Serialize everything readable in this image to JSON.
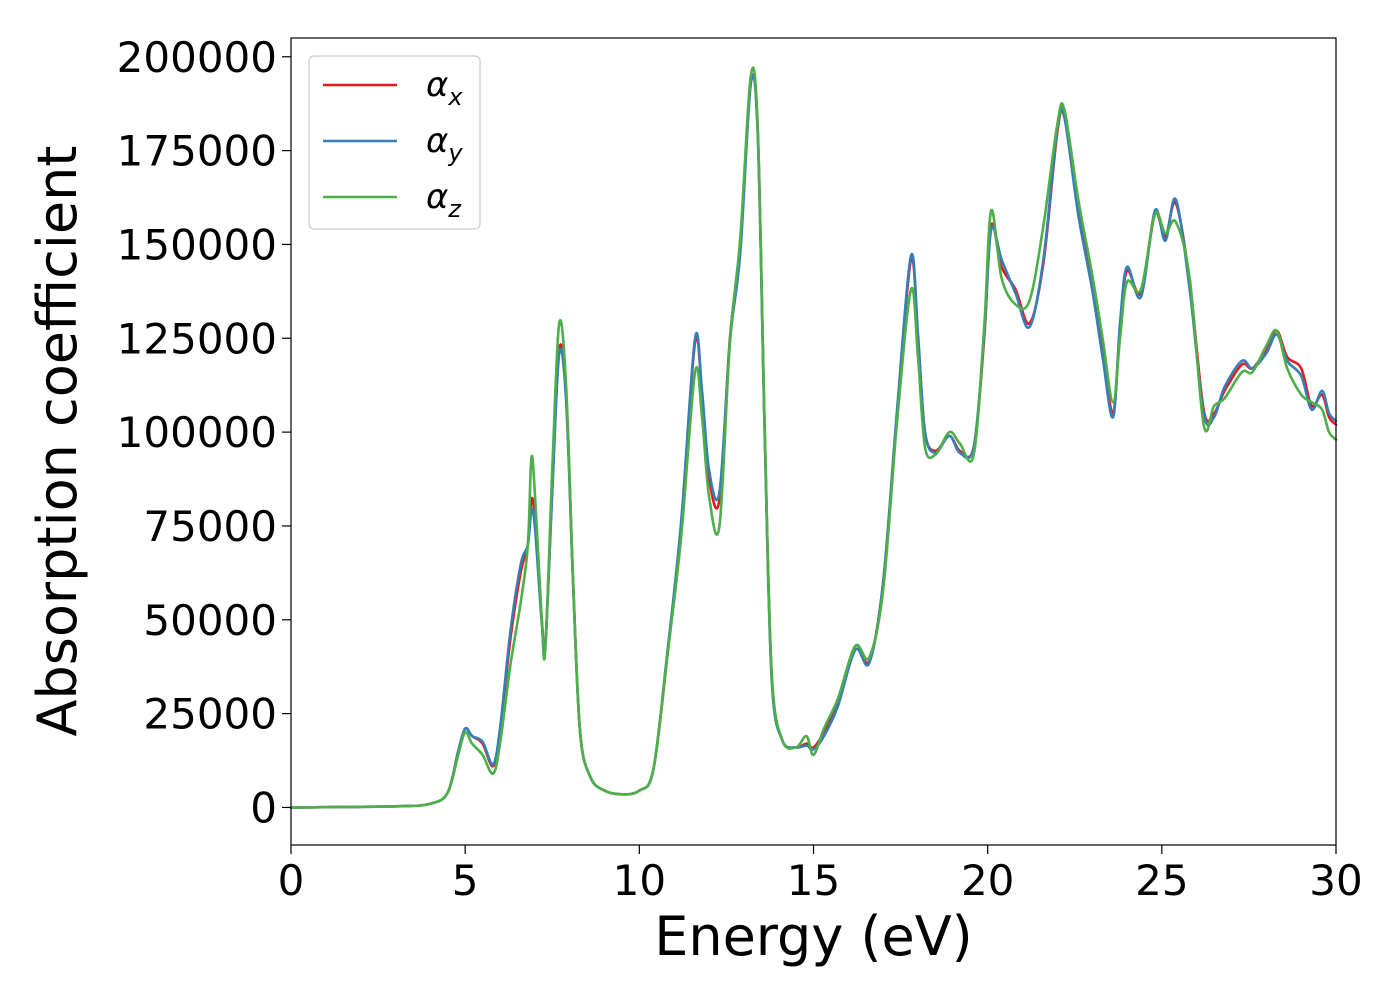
{
  "chart_data": {
    "type": "line",
    "title": "",
    "xlabel": "Energy (eV)",
    "ylabel": "Absorption coefficient",
    "xlim": [
      0,
      30
    ],
    "ylim": [
      -10000,
      205000
    ],
    "xticks": [
      0,
      5,
      10,
      15,
      20,
      25,
      30
    ],
    "xtick_labels": [
      "0",
      "5",
      "10",
      "15",
      "20",
      "25",
      "30"
    ],
    "yticks": [
      0,
      25000,
      50000,
      75000,
      100000,
      125000,
      150000,
      175000,
      200000
    ],
    "ytick_labels": [
      "0",
      "25000",
      "50000",
      "75000",
      "100000",
      "125000",
      "150000",
      "175000",
      "200000"
    ],
    "grid": false,
    "legend_position": "top-left",
    "series": [
      {
        "name": "α",
        "subscript": "x",
        "color": "#e41a1c",
        "points": [
          [
            0,
            0
          ],
          [
            3,
            300
          ],
          [
            4,
            1000
          ],
          [
            4.5,
            4000
          ],
          [
            4.8,
            15000
          ],
          [
            5.0,
            21000
          ],
          [
            5.2,
            19000
          ],
          [
            5.5,
            17000
          ],
          [
            5.8,
            11000
          ],
          [
            6.0,
            20000
          ],
          [
            6.3,
            45000
          ],
          [
            6.6,
            63000
          ],
          [
            6.8,
            70000
          ],
          [
            6.9,
            82000
          ],
          [
            7.0,
            77000
          ],
          [
            7.2,
            50000
          ],
          [
            7.3,
            43000
          ],
          [
            7.5,
            85000
          ],
          [
            7.7,
            122000
          ],
          [
            7.9,
            110000
          ],
          [
            8.1,
            60000
          ],
          [
            8.3,
            20000
          ],
          [
            8.6,
            8000
          ],
          [
            9.0,
            4500
          ],
          [
            9.5,
            3500
          ],
          [
            10.0,
            4500
          ],
          [
            10.4,
            10000
          ],
          [
            10.8,
            40000
          ],
          [
            11.2,
            75000
          ],
          [
            11.6,
            124000
          ],
          [
            11.8,
            110000
          ],
          [
            12.0,
            88000
          ],
          [
            12.3,
            82000
          ],
          [
            12.6,
            125000
          ],
          [
            12.9,
            150000
          ],
          [
            13.2,
            193000
          ],
          [
            13.4,
            180000
          ],
          [
            13.6,
            100000
          ],
          [
            13.8,
            35000
          ],
          [
            14.1,
            18000
          ],
          [
            14.5,
            16000
          ],
          [
            14.8,
            17000
          ],
          [
            15.0,
            16000
          ],
          [
            15.3,
            20000
          ],
          [
            15.7,
            28000
          ],
          [
            16.2,
            43000
          ],
          [
            16.6,
            39000
          ],
          [
            17.0,
            60000
          ],
          [
            17.4,
            105000
          ],
          [
            17.8,
            146000
          ],
          [
            18.0,
            125000
          ],
          [
            18.2,
            100000
          ],
          [
            18.5,
            95000
          ],
          [
            18.9,
            99000
          ],
          [
            19.2,
            95000
          ],
          [
            19.6,
            96000
          ],
          [
            19.9,
            125000
          ],
          [
            20.1,
            155000
          ],
          [
            20.4,
            144000
          ],
          [
            20.8,
            138000
          ],
          [
            21.2,
            129000
          ],
          [
            21.6,
            145000
          ],
          [
            22.0,
            180000
          ],
          [
            22.2,
            184000
          ],
          [
            22.6,
            160000
          ],
          [
            23.0,
            140000
          ],
          [
            23.3,
            122000
          ],
          [
            23.6,
            105000
          ],
          [
            23.8,
            128000
          ],
          [
            24.0,
            143000
          ],
          [
            24.4,
            137000
          ],
          [
            24.8,
            158000
          ],
          [
            25.1,
            152000
          ],
          [
            25.4,
            161000
          ],
          [
            25.8,
            140000
          ],
          [
            26.2,
            106000
          ],
          [
            26.5,
            105000
          ],
          [
            26.8,
            111000
          ],
          [
            27.3,
            118000
          ],
          [
            27.6,
            117000
          ],
          [
            28.0,
            122000
          ],
          [
            28.3,
            127000
          ],
          [
            28.6,
            120000
          ],
          [
            29.0,
            117000
          ],
          [
            29.3,
            107000
          ],
          [
            29.6,
            110000
          ],
          [
            29.8,
            104000
          ],
          [
            30.0,
            102000
          ]
        ]
      },
      {
        "name": "α",
        "subscript": "y",
        "color": "#377eb8",
        "points": [
          [
            0,
            0
          ],
          [
            3,
            300
          ],
          [
            4,
            1000
          ],
          [
            4.5,
            4000
          ],
          [
            4.8,
            15000
          ],
          [
            5.0,
            21000
          ],
          [
            5.2,
            19000
          ],
          [
            5.5,
            17500
          ],
          [
            5.8,
            11500
          ],
          [
            6.0,
            21000
          ],
          [
            6.3,
            47000
          ],
          [
            6.6,
            65000
          ],
          [
            6.8,
            70000
          ],
          [
            6.9,
            79000
          ],
          [
            7.0,
            75000
          ],
          [
            7.2,
            49000
          ],
          [
            7.3,
            43000
          ],
          [
            7.5,
            84000
          ],
          [
            7.7,
            121000
          ],
          [
            7.9,
            108000
          ],
          [
            8.1,
            59000
          ],
          [
            8.3,
            20000
          ],
          [
            8.6,
            8000
          ],
          [
            9.0,
            4500
          ],
          [
            9.5,
            3500
          ],
          [
            10.0,
            4500
          ],
          [
            10.4,
            10000
          ],
          [
            10.8,
            41000
          ],
          [
            11.2,
            76000
          ],
          [
            11.6,
            125000
          ],
          [
            11.8,
            111000
          ],
          [
            12.0,
            90000
          ],
          [
            12.3,
            84000
          ],
          [
            12.6,
            124000
          ],
          [
            12.9,
            148000
          ],
          [
            13.2,
            193000
          ],
          [
            13.4,
            179000
          ],
          [
            13.6,
            99000
          ],
          [
            13.8,
            34000
          ],
          [
            14.1,
            18000
          ],
          [
            14.5,
            16000
          ],
          [
            14.8,
            16500
          ],
          [
            15.0,
            15500
          ],
          [
            15.3,
            19000
          ],
          [
            15.7,
            27000
          ],
          [
            16.2,
            42000
          ],
          [
            16.6,
            38500
          ],
          [
            17.0,
            60000
          ],
          [
            17.4,
            106000
          ],
          [
            17.8,
            147000
          ],
          [
            18.0,
            126000
          ],
          [
            18.2,
            100000
          ],
          [
            18.5,
            94500
          ],
          [
            18.9,
            99000
          ],
          [
            19.2,
            94500
          ],
          [
            19.6,
            96000
          ],
          [
            19.9,
            126000
          ],
          [
            20.1,
            154000
          ],
          [
            20.4,
            146000
          ],
          [
            20.8,
            137000
          ],
          [
            21.2,
            128000
          ],
          [
            21.6,
            146000
          ],
          [
            22.0,
            181000
          ],
          [
            22.2,
            184000
          ],
          [
            22.6,
            158000
          ],
          [
            23.0,
            138000
          ],
          [
            23.3,
            120000
          ],
          [
            23.6,
            104000
          ],
          [
            23.8,
            129000
          ],
          [
            24.0,
            144000
          ],
          [
            24.4,
            136000
          ],
          [
            24.8,
            159000
          ],
          [
            25.1,
            151000
          ],
          [
            25.4,
            162000
          ],
          [
            25.8,
            138000
          ],
          [
            26.2,
            105000
          ],
          [
            26.5,
            104000
          ],
          [
            26.8,
            112000
          ],
          [
            27.3,
            119000
          ],
          [
            27.6,
            117000
          ],
          [
            28.0,
            121000
          ],
          [
            28.3,
            126000
          ],
          [
            28.6,
            119000
          ],
          [
            29.0,
            115000
          ],
          [
            29.3,
            106000
          ],
          [
            29.6,
            111000
          ],
          [
            29.8,
            105000
          ],
          [
            30.0,
            103000
          ]
        ]
      },
      {
        "name": "α",
        "subscript": "z",
        "color": "#4daf4a",
        "points": [
          [
            0,
            0
          ],
          [
            3,
            300
          ],
          [
            4,
            1000
          ],
          [
            4.5,
            4000
          ],
          [
            4.8,
            14000
          ],
          [
            5.0,
            20000
          ],
          [
            5.2,
            17000
          ],
          [
            5.5,
            14000
          ],
          [
            5.8,
            9000
          ],
          [
            6.0,
            17000
          ],
          [
            6.3,
            38000
          ],
          [
            6.6,
            55000
          ],
          [
            6.8,
            70000
          ],
          [
            6.9,
            93000
          ],
          [
            7.0,
            84000
          ],
          [
            7.2,
            50000
          ],
          [
            7.3,
            42000
          ],
          [
            7.5,
            90000
          ],
          [
            7.7,
            129000
          ],
          [
            7.9,
            112000
          ],
          [
            8.1,
            60000
          ],
          [
            8.3,
            20000
          ],
          [
            8.6,
            8000
          ],
          [
            9.0,
            4500
          ],
          [
            9.5,
            3500
          ],
          [
            10.0,
            4500
          ],
          [
            10.4,
            10000
          ],
          [
            10.8,
            40000
          ],
          [
            11.2,
            72000
          ],
          [
            11.6,
            116000
          ],
          [
            11.8,
            104000
          ],
          [
            12.0,
            83000
          ],
          [
            12.3,
            75000
          ],
          [
            12.6,
            124000
          ],
          [
            12.9,
            152000
          ],
          [
            13.2,
            195000
          ],
          [
            13.4,
            181000
          ],
          [
            13.6,
            101000
          ],
          [
            13.8,
            36000
          ],
          [
            14.1,
            18000
          ],
          [
            14.5,
            16000
          ],
          [
            14.8,
            19000
          ],
          [
            15.0,
            14000
          ],
          [
            15.3,
            21000
          ],
          [
            15.7,
            29000
          ],
          [
            16.2,
            43000
          ],
          [
            16.6,
            40000
          ],
          [
            17.0,
            58000
          ],
          [
            17.4,
            103000
          ],
          [
            17.8,
            138000
          ],
          [
            18.0,
            120000
          ],
          [
            18.2,
            96000
          ],
          [
            18.5,
            94000
          ],
          [
            18.9,
            100000
          ],
          [
            19.2,
            97000
          ],
          [
            19.6,
            94000
          ],
          [
            19.9,
            128000
          ],
          [
            20.1,
            159000
          ],
          [
            20.4,
            141000
          ],
          [
            20.8,
            134000
          ],
          [
            21.2,
            135000
          ],
          [
            21.6,
            155000
          ],
          [
            22.0,
            182000
          ],
          [
            22.2,
            186000
          ],
          [
            22.6,
            162000
          ],
          [
            23.0,
            142000
          ],
          [
            23.3,
            125000
          ],
          [
            23.6,
            108000
          ],
          [
            23.8,
            125000
          ],
          [
            24.0,
            140000
          ],
          [
            24.4,
            138000
          ],
          [
            24.8,
            158000
          ],
          [
            25.1,
            153000
          ],
          [
            25.4,
            156000
          ],
          [
            25.8,
            141000
          ],
          [
            26.2,
            102000
          ],
          [
            26.5,
            107000
          ],
          [
            26.8,
            109000
          ],
          [
            27.3,
            116000
          ],
          [
            27.6,
            116000
          ],
          [
            28.0,
            123000
          ],
          [
            28.3,
            127000
          ],
          [
            28.6,
            117000
          ],
          [
            29.0,
            110000
          ],
          [
            29.3,
            108000
          ],
          [
            29.6,
            106000
          ],
          [
            29.8,
            100000
          ],
          [
            30.0,
            98000
          ]
        ]
      }
    ]
  }
}
